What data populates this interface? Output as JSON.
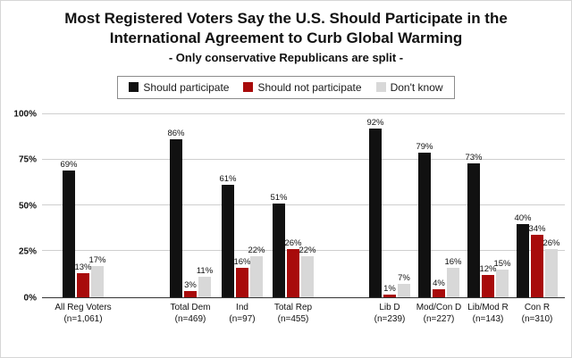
{
  "title": "Most Registered Voters Say the U.S. Should Participate in the International Agreement to Curb Global Warming",
  "subtitle": "- Only conservative Republicans are split -",
  "chart_data": {
    "type": "bar",
    "title": "Most Registered Voters Say the U.S. Should Participate in the International Agreement to Curb Global Warming",
    "subtitle": "- Only conservative Republicans are split -",
    "categories": [
      {
        "label": "All Reg Voters",
        "n": "(n=1,061)"
      },
      {
        "label": "Total Dem",
        "n": "(n=469)"
      },
      {
        "label": "Ind",
        "n": "(n=97)"
      },
      {
        "label": "Total Rep",
        "n": "(n=455)"
      },
      {
        "label": "Lib D",
        "n": "(n=239)"
      },
      {
        "label": "Mod/Con D",
        "n": "(n=227)"
      },
      {
        "label": "Lib/Mod R",
        "n": "(n=143)"
      },
      {
        "label": "Con R",
        "n": "(n=310)"
      }
    ],
    "series": [
      {
        "name": "Should participate",
        "color": "#111111",
        "values": [
          69,
          86,
          61,
          51,
          92,
          79,
          73,
          40
        ]
      },
      {
        "name": "Should not participate",
        "color": "#a80b0b",
        "values": [
          13,
          3,
          16,
          26,
          1,
          4,
          12,
          34
        ]
      },
      {
        "name": "Don't know",
        "color": "#d8d8d8",
        "values": [
          17,
          11,
          22,
          22,
          7,
          16,
          15,
          26
        ]
      }
    ],
    "ylim": [
      0,
      100
    ],
    "yticks": [
      "0%",
      "25%",
      "50%",
      "75%",
      "100%"
    ],
    "value_suffix": "%",
    "grid": true,
    "legend_position": "top",
    "cluster_break_after": [
      0,
      3
    ]
  }
}
